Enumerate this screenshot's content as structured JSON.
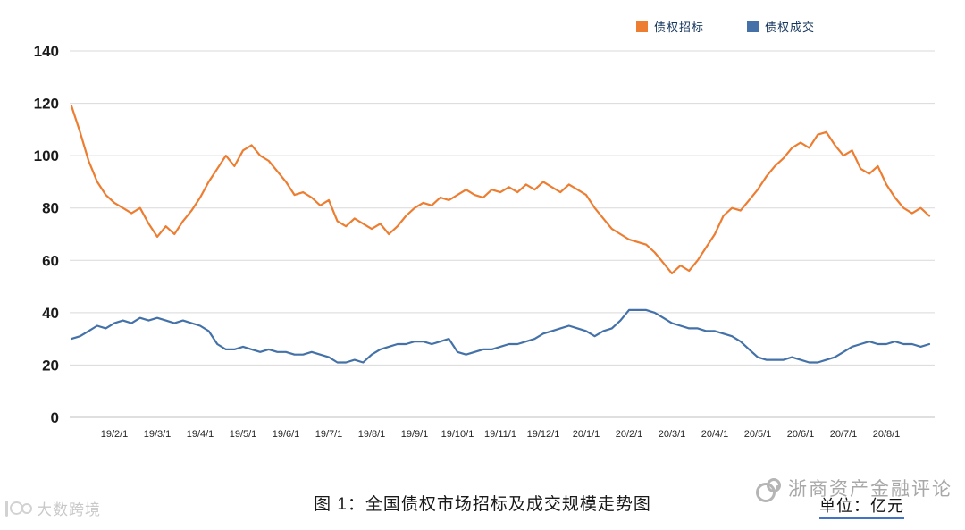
{
  "texts": {
    "caption": "图 1：全国债权市场招标及成交规模走势图",
    "unit": "单位：亿元",
    "watermark_left": "大数跨境",
    "watermark_right": "浙商资产金融评论"
  },
  "colors": {
    "tender_orange": "#ED7D31",
    "deal_blue": "#4472A8",
    "grid": "#d9d9d9",
    "axis_text": "#262626"
  },
  "chart_data": {
    "type": "line",
    "title": "图 1：全国债权市场招标及成交规模走势图",
    "unit_label": "单位：亿元",
    "ylim": [
      0,
      140
    ],
    "yticks": [
      0,
      20,
      40,
      60,
      80,
      100,
      120,
      140
    ],
    "grid": "horizontal",
    "legend_position": "top-right",
    "x_start": -1.0,
    "x_step": 0.2,
    "x_tick_positions": [
      0,
      1,
      2,
      3,
      4,
      5,
      6,
      7,
      8,
      9,
      10,
      11,
      12,
      13,
      14,
      15,
      16,
      17,
      18
    ],
    "x_tick_labels": [
      "19/2/1",
      "19/3/1",
      "19/4/1",
      "19/5/1",
      "19/6/1",
      "19/7/1",
      "19/8/1",
      "19/9/1",
      "19/10/1",
      "19/11/1",
      "19/12/1",
      "20/1/1",
      "20/2/1",
      "20/3/1",
      "20/4/1",
      "20/5/1",
      "20/6/1",
      "20/7/1",
      "20/8/1"
    ],
    "series": [
      {
        "name": "债权招标",
        "color": "#ED7D31",
        "values": [
          119,
          109,
          98,
          90,
          85,
          82,
          80,
          78,
          80,
          74,
          69,
          73,
          70,
          75,
          79,
          84,
          90,
          95,
          100,
          96,
          102,
          104,
          100,
          98,
          94,
          90,
          85,
          86,
          84,
          81,
          83,
          75,
          73,
          76,
          74,
          72,
          74,
          70,
          73,
          77,
          80,
          82,
          81,
          84,
          83,
          85,
          87,
          85,
          84,
          87,
          86,
          88,
          86,
          89,
          87,
          90,
          88,
          86,
          89,
          87,
          85,
          80,
          76,
          72,
          70,
          68,
          67,
          66,
          63,
          59,
          55,
          58,
          56,
          60,
          65,
          70,
          77,
          80,
          79,
          83,
          87,
          92,
          96,
          99,
          103,
          105,
          103,
          108,
          109,
          104,
          100,
          102,
          95,
          93,
          96,
          89,
          84,
          80,
          78,
          80,
          77
        ]
      },
      {
        "name": "债权成交",
        "color": "#4472A8",
        "values": [
          30,
          31,
          33,
          35,
          34,
          36,
          37,
          36,
          38,
          37,
          38,
          37,
          36,
          37,
          36,
          35,
          33,
          28,
          26,
          26,
          27,
          26,
          25,
          26,
          25,
          25,
          24,
          24,
          25,
          24,
          23,
          21,
          21,
          22,
          21,
          24,
          26,
          27,
          28,
          28,
          29,
          29,
          28,
          29,
          30,
          25,
          24,
          25,
          26,
          26,
          27,
          28,
          28,
          29,
          30,
          32,
          33,
          34,
          35,
          34,
          33,
          31,
          33,
          34,
          37,
          41,
          41,
          41,
          40,
          38,
          36,
          35,
          34,
          34,
          33,
          33,
          32,
          31,
          29,
          26,
          23,
          22,
          22,
          22,
          23,
          22,
          21,
          21,
          22,
          23,
          25,
          27,
          28,
          29,
          28,
          28,
          29,
          28,
          28,
          27,
          28
        ]
      }
    ]
  }
}
